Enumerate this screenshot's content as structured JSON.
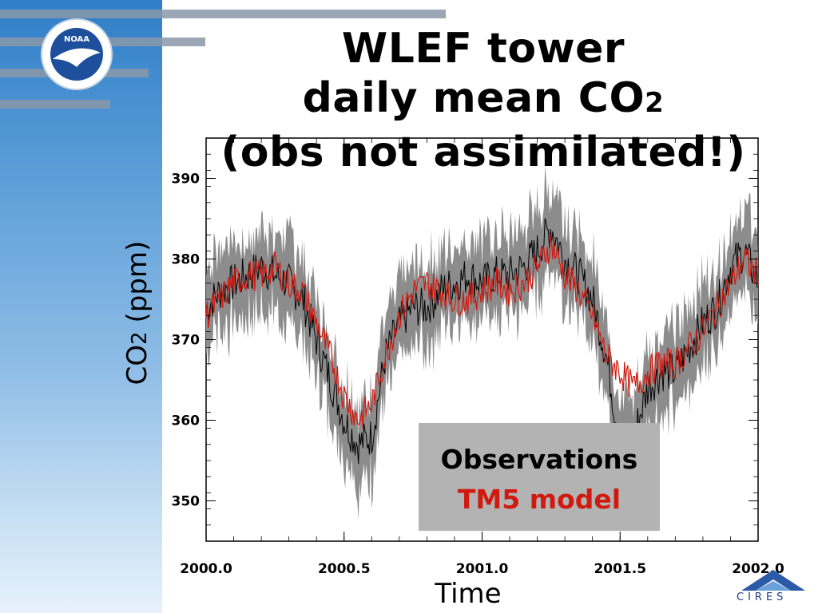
{
  "title": {
    "line1": "WLEF tower",
    "line2_text": "daily mean CO",
    "line2_sub": "2",
    "line3": "(obs not assimilated!)"
  },
  "legend": {
    "observations": "Observations",
    "model": "TM5 model"
  },
  "logos": {
    "noaa_text": "NOAA",
    "cires_text": "CIRES"
  },
  "colors": {
    "observations_line": "#000000",
    "observations_band": "#8c8c8c",
    "model_line": "#d01a10",
    "legend_box": "#b3b3b3"
  },
  "chart_data": {
    "type": "line",
    "ylabel_text": "CO",
    "ylabel_sub": "2",
    "ylabel_unit": " (ppm)",
    "xlabel": "Time",
    "xlim": [
      2000.0,
      2002.0
    ],
    "ylim": [
      345,
      395
    ],
    "xticks": [
      "2000.0",
      "2000.5",
      "2001.0",
      "2001.5",
      "2002.0"
    ],
    "yticks": [
      "350",
      "360",
      "370",
      "380",
      "390"
    ],
    "legend_position": "lower-right",
    "grid": false,
    "series": [
      {
        "name": "Observations",
        "x": [
          2000.0,
          2000.05,
          2000.1,
          2000.15,
          2000.2,
          2000.25,
          2000.3,
          2000.35,
          2000.4,
          2000.45,
          2000.5,
          2000.55,
          2000.6,
          2000.65,
          2000.7,
          2000.75,
          2000.8,
          2000.85,
          2000.9,
          2000.95,
          2001.0,
          2001.05,
          2001.1,
          2001.15,
          2001.2,
          2001.25,
          2001.3,
          2001.35,
          2001.4,
          2001.45,
          2001.5,
          2001.55,
          2001.6,
          2001.65,
          2001.7,
          2001.75,
          2001.8,
          2001.85,
          2001.9,
          2001.95,
          2002.0
        ],
        "y": [
          374,
          376,
          377,
          378,
          379,
          378,
          377,
          375,
          370,
          365,
          360,
          357,
          358,
          368,
          372,
          374,
          374,
          376,
          377,
          378,
          377,
          378,
          378,
          379,
          381,
          384,
          380,
          378,
          375,
          368,
          357,
          358,
          364,
          366,
          366,
          369,
          372,
          374,
          379,
          381,
          377
        ],
        "band_half_width": 5
      },
      {
        "name": "TM5 model",
        "x": [
          2000.0,
          2000.05,
          2000.1,
          2000.15,
          2000.2,
          2000.25,
          2000.3,
          2000.35,
          2000.4,
          2000.45,
          2000.5,
          2000.55,
          2000.6,
          2000.65,
          2000.7,
          2000.75,
          2000.8,
          2000.85,
          2000.9,
          2000.95,
          2001.0,
          2001.05,
          2001.1,
          2001.15,
          2001.2,
          2001.25,
          2001.3,
          2001.35,
          2001.4,
          2001.45,
          2001.5,
          2001.55,
          2001.6,
          2001.65,
          2001.7,
          2001.75,
          2001.8,
          2001.85,
          2001.9,
          2001.95,
          2002.0
        ],
        "y": [
          373,
          375,
          377,
          378,
          378,
          379,
          377,
          376,
          372,
          368,
          363,
          360,
          362,
          368,
          373,
          376,
          377,
          376,
          375,
          375,
          376,
          377,
          376,
          377,
          379,
          382,
          378,
          376,
          373,
          368,
          366,
          364,
          366,
          367,
          367,
          369,
          371,
          374,
          377,
          380,
          378
        ]
      }
    ]
  }
}
